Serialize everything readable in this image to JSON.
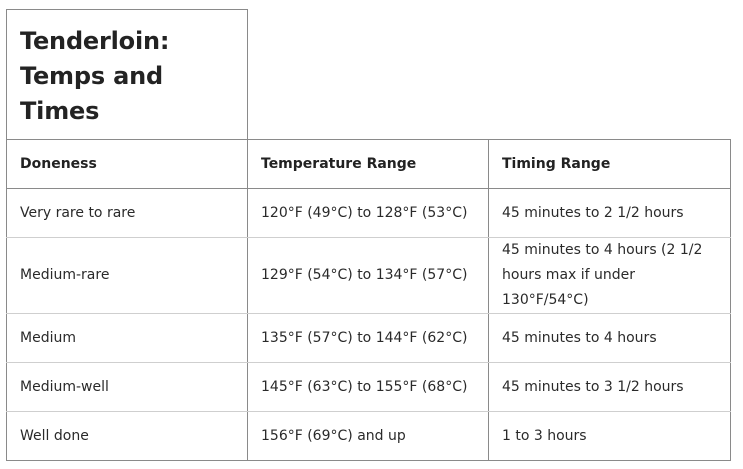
{
  "caption": {
    "title": "Tenderloin: Temps and Times"
  },
  "table": {
    "headers": [
      "Doneness",
      "Temperature Range",
      "Timing Range"
    ],
    "rows": [
      {
        "doneness": "Very rare to rare",
        "temperature": "120°F (49°C) to 128°F (53°C)",
        "timing": "45 minutes to 2 1/2 hours"
      },
      {
        "doneness": "Medium-rare",
        "temperature": "129°F (54°C) to 134°F (57°C)",
        "timing": "45 minutes to 4 hours (2 1/2 hours max if under 130°F/54°C)"
      },
      {
        "doneness": "Medium",
        "temperature": "135°F (57°C) to 144°F (62°C)",
        "timing": "45 minutes to 4 hours"
      },
      {
        "doneness": "Medium-well",
        "temperature": "145°F (63°C) to 155°F (68°C)",
        "timing": "45 minutes to 3 1/2 hours"
      },
      {
        "doneness": "Well done",
        "temperature": "156°F (69°C) and up",
        "timing": "1 to 3 hours"
      }
    ]
  }
}
